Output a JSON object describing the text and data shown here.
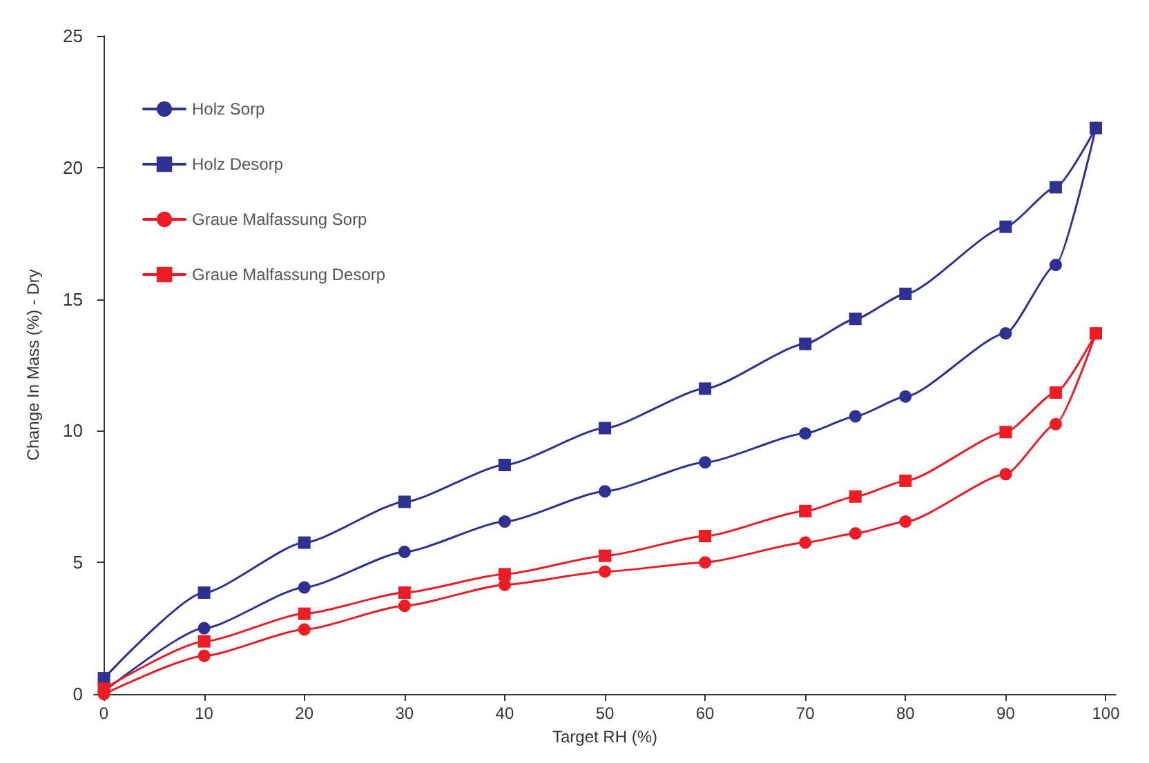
{
  "chart_data": {
    "type": "line",
    "xlabel": "Target RH (%)",
    "ylabel": "Change In Mass (%) - Dry",
    "x": [
      0,
      10,
      20,
      30,
      40,
      50,
      60,
      70,
      75,
      80,
      90,
      95,
      99
    ],
    "series": [
      {
        "name": "Holz Sorp",
        "color": "#2e3192",
        "marker": "circle",
        "values": [
          0.1,
          2.5,
          4.05,
          5.4,
          6.55,
          7.7,
          8.8,
          9.9,
          10.55,
          11.3,
          13.7,
          16.3,
          21.5
        ]
      },
      {
        "name": "Holz Desorp",
        "color": "#2e3192",
        "marker": "square",
        "values": [
          0.6,
          3.85,
          5.75,
          7.3,
          8.7,
          10.1,
          11.6,
          13.3,
          14.25,
          15.2,
          17.75,
          19.25,
          21.5
        ]
      },
      {
        "name": "Graue Malfassung Sorp",
        "color": "#ed1c24",
        "marker": "circle",
        "values": [
          0,
          1.45,
          2.45,
          3.35,
          4.15,
          4.65,
          5.0,
          5.75,
          6.1,
          6.55,
          8.35,
          10.25,
          13.7
        ]
      },
      {
        "name": "Graue Malfassung Desorp",
        "color": "#ed1c24",
        "marker": "square",
        "values": [
          0.2,
          2.0,
          3.05,
          3.85,
          4.55,
          5.25,
          6.0,
          6.95,
          7.5,
          8.1,
          9.95,
          11.45,
          13.7
        ]
      }
    ],
    "xlim": [
      -1,
      101
    ],
    "xticks": [
      0,
      10,
      20,
      30,
      40,
      50,
      60,
      70,
      80,
      90,
      100
    ],
    "ylim": [
      0,
      25
    ],
    "yticks": [
      0,
      5,
      10,
      15,
      20,
      25
    ],
    "grid": false,
    "legend": "top left",
    "line_style": "solid"
  }
}
